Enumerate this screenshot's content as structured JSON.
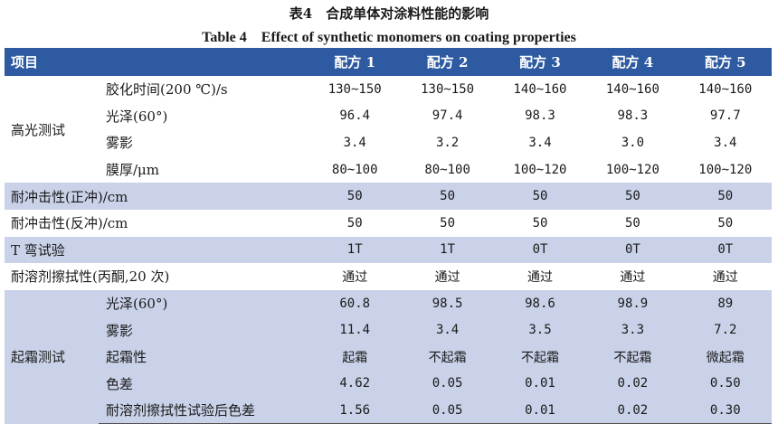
{
  "caption_cn": "表4　合成单体对涂料性能的影响",
  "caption_en": "Table 4　Effect of synthetic monomers on coating properties",
  "headers": [
    "项目",
    "配方 1",
    "配方 2",
    "配方 3",
    "配方 4",
    "配方 5"
  ],
  "gloss_test": {
    "label": "高光测试",
    "rows": [
      {
        "label": "胶化时间(200 ℃)/s",
        "values": [
          "130~150",
          "130~150",
          "140~160",
          "140~160",
          "140~160"
        ]
      },
      {
        "label": "光泽(60°)",
        "values": [
          "96.4",
          "97.4",
          "98.3",
          "98.3",
          "97.7"
        ]
      },
      {
        "label": "雾影",
        "values": [
          "3.4",
          "3.2",
          "3.4",
          "3.0",
          "3.4"
        ]
      },
      {
        "label": "膜厚/μm",
        "values": [
          "80~100",
          "80~100",
          "100~120",
          "100~120",
          "100~120"
        ]
      }
    ]
  },
  "rows": [
    {
      "label": "耐冲击性(正冲)/cm",
      "values": [
        "50",
        "50",
        "50",
        "50",
        "50"
      ]
    },
    {
      "label": "耐冲击性(反冲)/cm",
      "values": [
        "50",
        "50",
        "50",
        "50",
        "50"
      ]
    },
    {
      "label": "T 弯试验",
      "values": [
        "1T",
        "1T",
        "0T",
        "0T",
        "0T"
      ]
    },
    {
      "label": "耐溶剂擦拭性(丙酮,20 次)",
      "values": [
        "通过",
        "通过",
        "通过",
        "通过",
        "通过"
      ]
    }
  ],
  "bloom_test": {
    "label": "起霜测试",
    "rows": [
      {
        "label": "光泽(60°)",
        "values": [
          "60.8",
          "98.5",
          "98.6",
          "98.9",
          "89"
        ]
      },
      {
        "label": "雾影",
        "values": [
          "11.4",
          "3.4",
          "3.5",
          "3.3",
          "7.2"
        ]
      },
      {
        "label": "起霜性",
        "values": [
          "起霜",
          "不起霜",
          "不起霜",
          "不起霜",
          "微起霜"
        ]
      },
      {
        "label": "色差",
        "values": [
          "4.62",
          "0.05",
          "0.01",
          "0.02",
          "0.50"
        ]
      },
      {
        "label": "耐溶剂擦拭性试验后色差",
        "values": [
          "1.56",
          "0.05",
          "0.01",
          "0.02",
          "0.30"
        ]
      }
    ]
  }
}
